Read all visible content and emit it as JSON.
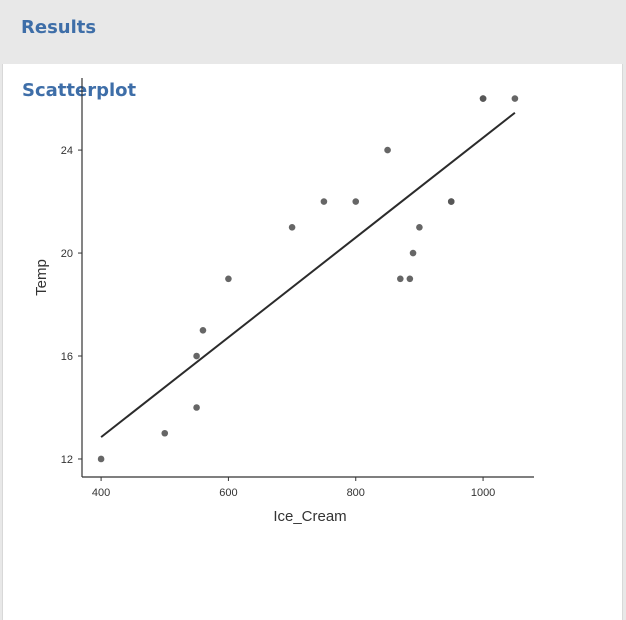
{
  "header": {
    "title": "Results"
  },
  "section": {
    "title": "Scatterplot"
  },
  "colors": {
    "accent": "#3e6ea8",
    "point": "#555555",
    "line": "#2b2b2b",
    "axis": "#333333"
  },
  "chart_data": {
    "type": "scatter",
    "title": "",
    "xlabel": "Ice_Cream",
    "ylabel": "Temp",
    "xlim": [
      370,
      1080
    ],
    "ylim": [
      11.3,
      26.8
    ],
    "x_ticks": [
      400,
      600,
      800,
      1000
    ],
    "y_ticks": [
      12,
      16,
      20,
      24
    ],
    "grid": false,
    "points": [
      {
        "x": 400,
        "y": 12
      },
      {
        "x": 500,
        "y": 13
      },
      {
        "x": 550,
        "y": 14
      },
      {
        "x": 550,
        "y": 16
      },
      {
        "x": 560,
        "y": 17
      },
      {
        "x": 600,
        "y": 19
      },
      {
        "x": 700,
        "y": 21
      },
      {
        "x": 750,
        "y": 22
      },
      {
        "x": 800,
        "y": 22
      },
      {
        "x": 850,
        "y": 24
      },
      {
        "x": 870,
        "y": 19
      },
      {
        "x": 885,
        "y": 19
      },
      {
        "x": 890,
        "y": 20
      },
      {
        "x": 900,
        "y": 21
      },
      {
        "x": 950,
        "y": 22
      },
      {
        "x": 950,
        "y": 22
      },
      {
        "x": 1000,
        "y": 26
      },
      {
        "x": 1000,
        "y": 26
      },
      {
        "x": 1050,
        "y": 26
      }
    ],
    "trendline": {
      "type": "linear",
      "start": {
        "x": 400,
        "y": 12.85
      },
      "end": {
        "x": 1050,
        "y": 25.45
      }
    }
  }
}
